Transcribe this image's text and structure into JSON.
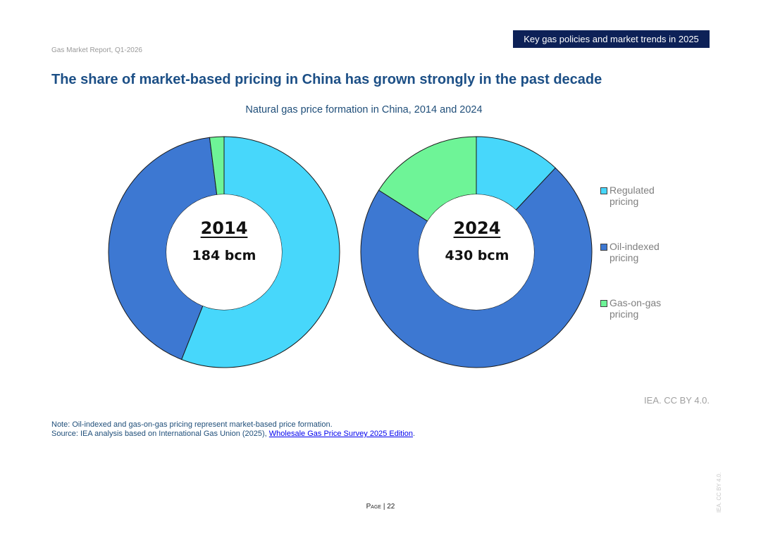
{
  "header": {
    "section_label": "Key gas policies and market trends in 2025",
    "report_name": "Gas Market Report, Q1-2026"
  },
  "page_title": "The share of market-based pricing in China has grown strongly in the past decade",
  "colors": {
    "regulated": "#47d7fb",
    "oil_indexed": "#3d78d2",
    "gas_on_gas": "#6ef497",
    "header_band": "#0d2157"
  },
  "chart_data": {
    "type": "pie",
    "subtype": "donut",
    "title": "Natural gas price formation in China, 2014 and 2024",
    "legend_position": "right",
    "legend": [
      {
        "name": "Regulated pricing",
        "color": "#47d7fb"
      },
      {
        "name": "Oil-indexed pricing",
        "color": "#3d78d2"
      },
      {
        "name": "Gas-on-gas pricing",
        "color": "#6ef497"
      }
    ],
    "categories": [
      "Regulated pricing",
      "Oil-indexed pricing",
      "Gas-on-gas pricing"
    ],
    "charts": [
      {
        "year": "2014",
        "total": "184 bcm",
        "values": [
          56,
          42,
          2
        ]
      },
      {
        "year": "2024",
        "total": "430 bcm",
        "values": [
          12,
          72,
          16
        ]
      }
    ]
  },
  "credit": "IEA. CC BY 4.0.",
  "note": "Note: Oil-indexed and gas-on-gas pricing represent market-based price formation.",
  "source": {
    "prefix": "Source: IEA analysis based on International Gas Union (2025), ",
    "link_text": "Wholesale Gas Price Survey 2025 Edition",
    "suffix": "."
  },
  "footer": {
    "page_word": "Page",
    "page_sep": " | ",
    "page_number": "22",
    "side_watermark": "IEA. CC BY 4.0."
  }
}
